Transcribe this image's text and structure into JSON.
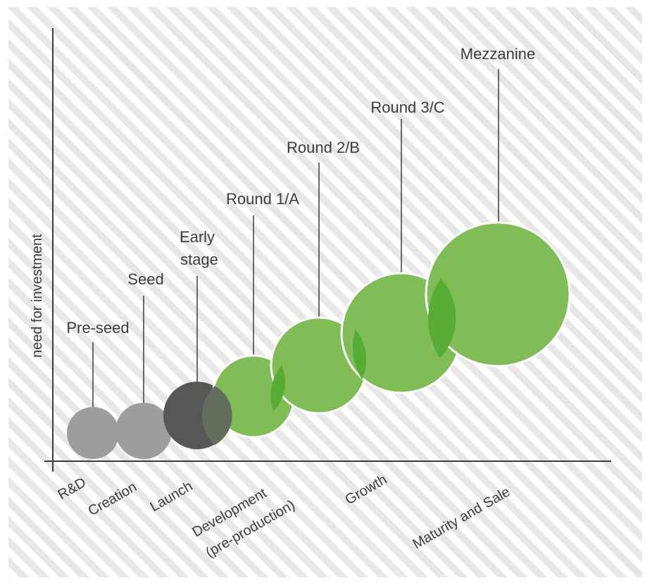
{
  "diagram": {
    "y_axis_label": "need for investment",
    "stages": [
      "R&D",
      "Creation",
      "Launch",
      "Development",
      "(pre-production)",
      "Growth",
      "Maturity and Sale"
    ],
    "rounds": [
      {
        "label_lines": [
          "Pre-seed"
        ],
        "category": "grey"
      },
      {
        "label_lines": [
          "Seed"
        ],
        "category": "grey"
      },
      {
        "label_lines": [
          "Early",
          "stage"
        ],
        "category": "dark"
      },
      {
        "label_lines": [
          "Round 1/A"
        ],
        "category": "green"
      },
      {
        "label_lines": [
          "Round 2/B"
        ],
        "category": "green"
      },
      {
        "label_lines": [
          "Round 3/C"
        ],
        "category": "green"
      },
      {
        "label_lines": [
          "Mezzanine"
        ],
        "category": "green"
      }
    ],
    "colors": {
      "grey": "#9d9d9c",
      "dark": "#575756",
      "green": "#80bd57",
      "overlap": "#56ac35",
      "background_stripe": "#e7e7e7",
      "axis": "#3c3c3b",
      "text": "#3c3c3b"
    }
  }
}
